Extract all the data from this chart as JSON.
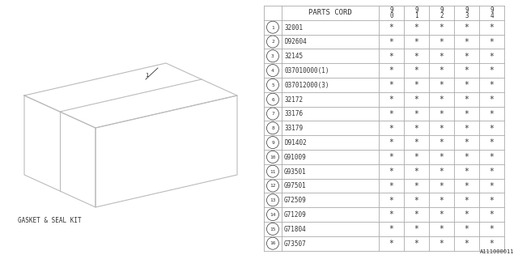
{
  "bg_color": "#ffffff",
  "label_text": "GASKET & SEAL KIT",
  "parts_cord_header": "PARTS CORD",
  "rows": [
    {
      "num": 1,
      "part": "32001"
    },
    {
      "num": 2,
      "part": "D92604"
    },
    {
      "num": 3,
      "part": "32145"
    },
    {
      "num": 4,
      "part": "037010000(1)"
    },
    {
      "num": 5,
      "part": "037012000(3)"
    },
    {
      "num": 6,
      "part": "32172"
    },
    {
      "num": 7,
      "part": "33176"
    },
    {
      "num": 8,
      "part": "33179"
    },
    {
      "num": 9,
      "part": "D91402"
    },
    {
      "num": 10,
      "part": "G91009"
    },
    {
      "num": 11,
      "part": "G93501"
    },
    {
      "num": 12,
      "part": "G97501"
    },
    {
      "num": 13,
      "part": "G72509"
    },
    {
      "num": 14,
      "part": "G71209"
    },
    {
      "num": 15,
      "part": "G71804"
    },
    {
      "num": 16,
      "part": "G73507"
    }
  ],
  "year_headers": [
    "9\n0",
    "9\n1",
    "9\n2",
    "9\n3",
    "9\n4"
  ],
  "watermark": "A111000011",
  "line_color": "#aaaaaa",
  "text_color": "#333333",
  "box_color": "#bbbbbb"
}
